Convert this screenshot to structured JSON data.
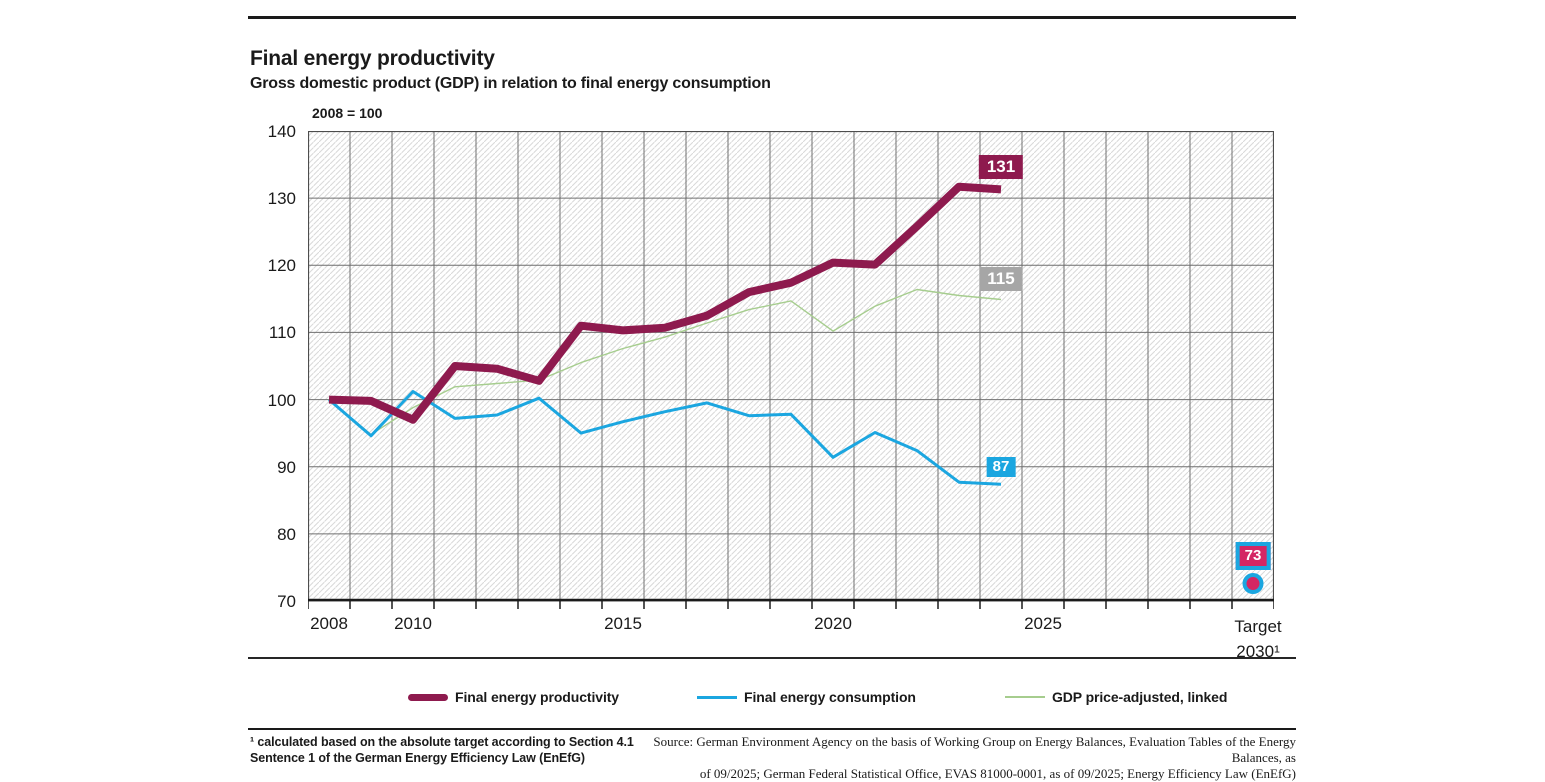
{
  "header": {
    "title": "Final energy productivity",
    "subtitle": "Gross domestic product (GDP) in relation to final energy consumption",
    "unit_label": "2008 = 100"
  },
  "chart_data": {
    "type": "line",
    "title": "Final energy productivity",
    "subtitle": "Gross domestic product (GDP) in relation to final energy consumption",
    "unit_label": "2008 = 100",
    "ylim": [
      70,
      140
    ],
    "y_tick_labels": [
      "140",
      "130",
      "120",
      "110",
      "100",
      "90",
      "80",
      "70"
    ],
    "grid": "on",
    "x_range_years": [
      2008,
      2030
    ],
    "x": [
      2008,
      2009,
      2010,
      2011,
      2012,
      2013,
      2014,
      2015,
      2016,
      2017,
      2018,
      2019,
      2020,
      2021,
      2022,
      2023,
      2024
    ],
    "x_axis_labels": [
      {
        "text": "2008",
        "year": 2008
      },
      {
        "text": "2010",
        "year": 2010
      },
      {
        "text": "2015",
        "year": 2015
      },
      {
        "text": "2020",
        "year": 2020
      },
      {
        "text": "2025",
        "year": 2025
      }
    ],
    "x_axis_target_label_lines": [
      "Target",
      "2030¹"
    ],
    "series": [
      {
        "name": "GDP price-adjusted, linked",
        "color": "#a6cd8e",
        "width": 1.4,
        "end_label": "115",
        "end_label_bg": "#a6a6a6",
        "values": [
          100,
          94.8,
          98.8,
          101.9,
          102.4,
          102.9,
          105.5,
          107.6,
          109.3,
          111.4,
          113.4,
          114.7,
          110.2,
          113.9,
          116.4,
          115.5,
          114.9
        ]
      },
      {
        "name": "Final energy consumption",
        "color": "#1ba6e0",
        "width": 3,
        "end_label": "87",
        "end_label_bg": "#1ba6e0",
        "values": [
          100,
          94.6,
          101.2,
          97.2,
          97.7,
          100.2,
          95,
          96.7,
          98.2,
          99.5,
          97.6,
          97.8,
          91.4,
          95.1,
          92.4,
          87.7,
          87.4
        ]
      },
      {
        "name": "Final energy productivity",
        "color": "#8e1a4e",
        "width": 8,
        "end_label": "131",
        "end_label_bg": "#8e1a4e",
        "values": [
          100,
          99.8,
          97,
          105,
          104.6,
          102.8,
          111,
          110.3,
          110.7,
          112.5,
          116,
          117.4,
          120.4,
          120.1,
          125.8,
          131.7,
          131.3
        ]
      }
    ],
    "target": {
      "label": "73",
      "year": 2030,
      "value": 72.6,
      "box_fill": "#d42663",
      "box_border": "#1ba6e0"
    },
    "legend_position": "bottom"
  },
  "legend": {
    "items": [
      "Final energy productivity",
      "Final energy consumption",
      "GDP price-adjusted, linked"
    ]
  },
  "footnote": {
    "line1": "¹ calculated based on the absolute target according to Section 4.1",
    "line2": "Sentence 1 of the German Energy Efficiency Law (EnEfG)"
  },
  "source": {
    "line1": "Source: German Environment Agency on the basis of Working Group on Energy Balances, Evaluation Tables of the Energy Balances, as",
    "line2": "of 09/2025; German Federal Statistical Office, EVAS 81000-0001, as of 09/2025; Energy Efficiency Law (EnEfG)"
  },
  "colors": {
    "productivity": "#8e1a4e",
    "consumption": "#1ba6e0",
    "gdp": "#a6cd8e",
    "gdp_label_bg": "#a6a6a6",
    "target_fill": "#d42663",
    "target_border": "#1ba6e0",
    "gridline": "#6f6f6f",
    "hatch": "#d9d9d9",
    "axis": "#1a1a1a"
  }
}
